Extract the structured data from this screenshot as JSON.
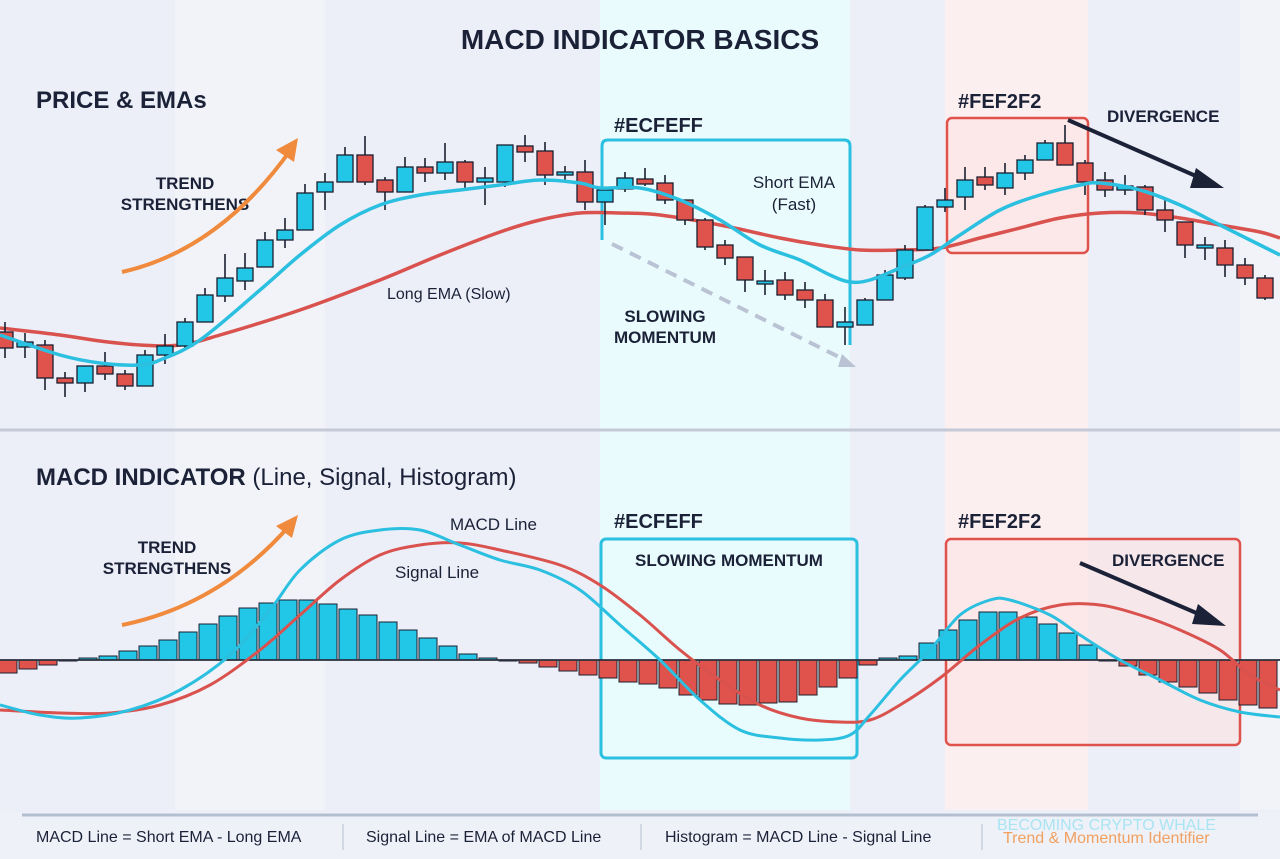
{
  "title": "MACD INDICATOR BASICS",
  "colors": {
    "bullish": "#22c6e6",
    "bearish": "#e0524c",
    "short_ema": "#2bbfe0",
    "long_ema": "#d9524e",
    "accent_orange": "#f08a3c",
    "cyan_tint": "#ECFEFF",
    "red_tint": "#FEF2F2"
  },
  "price_panel": {
    "heading": "PRICE & EMAs",
    "trend_label": [
      "TREND",
      "STRENGTHENS"
    ],
    "long_ema_label": "Long EMA (Slow)",
    "short_ema_label": [
      "Short EMA",
      "(Fast)"
    ],
    "cyan_hex_label": "#ECFEFF",
    "slowing_label": [
      "SLOWING",
      "MOMENTUM"
    ],
    "red_hex_label": "#FEF2F2",
    "divergence_label": "DIVERGENCE"
  },
  "macd_panel": {
    "heading_bold": "MACD INDICATOR",
    "heading_rest": " (Line, Signal, Histogram)",
    "trend_label": [
      "TREND",
      "STRENGTHENS"
    ],
    "macd_line_label": "MACD Line",
    "signal_line_label": "Signal Line",
    "cyan_hex_label": "#ECFEFF",
    "slowing_label": "SLOWING MOMENTUM",
    "red_hex_label": "#FEF2F2",
    "divergence_label": "DIVERGENCE"
  },
  "footer": {
    "formulas": [
      "MACD Line = Short EMA - Long EMA",
      "Signal Line = EMA of MACD Line",
      "Histogram = MACD Line - Signal Line"
    ],
    "brand": "BECOMING CRYPTO WHALE",
    "tagline": "Trend & Momentum Identifier"
  },
  "chart_data": [
    {
      "type": "candlestick",
      "title": "PRICE & EMAs",
      "candles_ohlc": [
        [
          118,
          128,
          92,
          102
        ],
        [
          103,
          117,
          92,
          108
        ],
        [
          105,
          110,
          60,
          72
        ],
        [
          72,
          78,
          53,
          67
        ],
        [
          67,
          84,
          58,
          84
        ],
        [
          84,
          98,
          70,
          76
        ],
        [
          76,
          80,
          60,
          64
        ],
        [
          64,
          100,
          64,
          95
        ],
        [
          95,
          116,
          86,
          104
        ],
        [
          104,
          132,
          100,
          128
        ],
        [
          128,
          162,
          128,
          155
        ],
        [
          154,
          196,
          148,
          172
        ],
        [
          169,
          197,
          160,
          182
        ],
        [
          183,
          218,
          183,
          210
        ],
        [
          210,
          232,
          202,
          220
        ],
        [
          220,
          266,
          220,
          257
        ],
        [
          258,
          277,
          240,
          268
        ],
        [
          268,
          303,
          268,
          295
        ],
        [
          295,
          314,
          265,
          268
        ],
        [
          270,
          273,
          240,
          258
        ],
        [
          258,
          293,
          258,
          283
        ],
        [
          283,
          292,
          268,
          277
        ],
        [
          277,
          307,
          270,
          288
        ],
        [
          288,
          290,
          262,
          268
        ],
        [
          268,
          283,
          245,
          272
        ],
        [
          268,
          305,
          263,
          305
        ],
        [
          304,
          315,
          288,
          298
        ],
        [
          299,
          308,
          265,
          275
        ],
        [
          275,
          284,
          270,
          278
        ],
        [
          278,
          290,
          240,
          248
        ],
        [
          248,
          262,
          225,
          260
        ],
        [
          261,
          278,
          258,
          272
        ],
        [
          271,
          282,
          264,
          266
        ],
        [
          267,
          275,
          246,
          250
        ],
        [
          250,
          250,
          225,
          230
        ],
        [
          230,
          232,
          200,
          203
        ],
        [
          205,
          210,
          185,
          192
        ],
        [
          193,
          193,
          158,
          170
        ],
        [
          167,
          180,
          155,
          169
        ],
        [
          170,
          178,
          150,
          155
        ],
        [
          160,
          168,
          142,
          150
        ],
        [
          150,
          156,
          123,
          123
        ],
        [
          123,
          143,
          105,
          128
        ],
        [
          125,
          152,
          125,
          150
        ],
        [
          150,
          180,
          150,
          175
        ],
        [
          172,
          205,
          170,
          200
        ],
        [
          200,
          245,
          200,
          243
        ],
        [
          243,
          262,
          238,
          250
        ],
        [
          253,
          283,
          240,
          270
        ],
        [
          273,
          283,
          260,
          265
        ],
        [
          262,
          287,
          255,
          277
        ],
        [
          277,
          295,
          270,
          290
        ],
        [
          290,
          310,
          290,
          307
        ],
        [
          307,
          325,
          285,
          285
        ],
        [
          287,
          290,
          255,
          268
        ],
        [
          270,
          278,
          253,
          260
        ],
        [
          260,
          275,
          255,
          264
        ],
        [
          263,
          265,
          235,
          240
        ],
        [
          240,
          250,
          218,
          230
        ],
        [
          228,
          228,
          192,
          205
        ],
        [
          202,
          213,
          190,
          205
        ],
        [
          202,
          210,
          173,
          185
        ],
        [
          185,
          192,
          165,
          172
        ],
        [
          172,
          175,
          150,
          152
        ]
      ],
      "short_ema": [
        [
          -0.25,
          115
        ],
        [
          2.75,
          95
        ],
        [
          4.75,
          87
        ],
        [
          6.75,
          85
        ],
        [
          7.75,
          90
        ],
        [
          9.75,
          110
        ],
        [
          12.75,
          160
        ],
        [
          14.75,
          195
        ],
        [
          16.75,
          225
        ],
        [
          18.75,
          245
        ],
        [
          20.75,
          255
        ],
        [
          22.75,
          260
        ],
        [
          24.75,
          265
        ],
        [
          26.75,
          270
        ],
        [
          28.75,
          267
        ],
        [
          29.75,
          262
        ],
        [
          31.75,
          262
        ],
        [
          33.75,
          250
        ],
        [
          35.75,
          230
        ],
        [
          37.75,
          205
        ],
        [
          39.75,
          190
        ],
        [
          41.25,
          175
        ],
        [
          42.25,
          168
        ],
        [
          43.25,
          170
        ],
        [
          44.75,
          182
        ],
        [
          46.25,
          195
        ],
        [
          47.75,
          215
        ],
        [
          49.75,
          240
        ],
        [
          51.75,
          255
        ],
        [
          53.75,
          265
        ],
        [
          54.75,
          267
        ],
        [
          56.75,
          260
        ],
        [
          58.75,
          245
        ],
        [
          60.75,
          225
        ],
        [
          62.75,
          205
        ],
        [
          63.75,
          195
        ]
      ],
      "long_ema": [
        [
          -0.25,
          122
        ],
        [
          2.75,
          115
        ],
        [
          4.75,
          109
        ],
        [
          6.75,
          105
        ],
        [
          8.75,
          105
        ],
        [
          10.75,
          115
        ],
        [
          14.75,
          140
        ],
        [
          18.75,
          170
        ],
        [
          21.75,
          195
        ],
        [
          24.75,
          218
        ],
        [
          26.75,
          230
        ],
        [
          28.75,
          237
        ],
        [
          30.75,
          237
        ],
        [
          32.75,
          235
        ],
        [
          35.75,
          225
        ],
        [
          38.75,
          212
        ],
        [
          40.75,
          205
        ],
        [
          42.75,
          200
        ],
        [
          44.75,
          200
        ],
        [
          46.75,
          202
        ],
        [
          48.75,
          212
        ],
        [
          50.75,
          222
        ],
        [
          52.75,
          232
        ],
        [
          54.75,
          237
        ],
        [
          56.75,
          237
        ],
        [
          58.75,
          232
        ],
        [
          60.75,
          225
        ],
        [
          62.75,
          218
        ],
        [
          63.75,
          212
        ]
      ],
      "highlights": [
        {
          "label": "#ECFEFF",
          "from_index": 30,
          "to_index": 42
        },
        {
          "label": "#FEF2F2",
          "from_index": 47,
          "to_index": 54
        }
      ]
    },
    {
      "type": "bar+line",
      "title": "MACD INDICATOR (Line, Signal, Histogram)",
      "histogram": [
        -1.3,
        -0.9,
        -0.5,
        -0.1,
        0.2,
        0.4,
        0.9,
        1.4,
        2.0,
        2.8,
        3.6,
        4.4,
        5.2,
        5.7,
        6.0,
        6.0,
        5.6,
        5.1,
        4.5,
        3.8,
        3.0,
        2.2,
        1.4,
        0.6,
        0.2,
        0,
        -0.3,
        -0.7,
        -1.1,
        -1.5,
        -1.8,
        -2.2,
        -2.4,
        -2.8,
        -3.5,
        -4.0,
        -4.4,
        -4.5,
        -4.3,
        -4.2,
        -3.5,
        -2.7,
        -1.8,
        -0.5,
        0.2,
        0.4,
        1.7,
        3.0,
        4.0,
        4.8,
        4.8,
        4.3,
        3.6,
        2.7,
        1.5,
        0,
        -0.6,
        -1.5,
        -2.2,
        -2.7,
        -3.3,
        -4.0,
        -4.5,
        -4.8
      ],
      "macd_line": [
        [
          -0.4,
          -4.5
        ],
        [
          1.6,
          -5.5
        ],
        [
          3.6,
          -5.8
        ],
        [
          6.1,
          -5.0
        ],
        [
          8.6,
          -3.0
        ],
        [
          11.1,
          0.5
        ],
        [
          13.1,
          5.0
        ],
        [
          14.6,
          9.0
        ],
        [
          16.6,
          12.0
        ],
        [
          18.6,
          13.0
        ],
        [
          20.6,
          13.0
        ],
        [
          22.6,
          11.5
        ],
        [
          24.6,
          10.0
        ],
        [
          26.6,
          9.0
        ],
        [
          28.6,
          7.0
        ],
        [
          30.6,
          3.5
        ],
        [
          32.6,
          0
        ],
        [
          34.6,
          -4
        ],
        [
          36.6,
          -7
        ],
        [
          38.6,
          -7.8
        ],
        [
          40.6,
          -8
        ],
        [
          42.1,
          -7.5
        ],
        [
          43.1,
          -5.5
        ],
        [
          44.6,
          -2
        ],
        [
          46.1,
          1
        ],
        [
          47.6,
          4.5
        ],
        [
          49.1,
          6
        ],
        [
          50.1,
          6
        ],
        [
          52.1,
          4.5
        ],
        [
          53.6,
          2.5
        ],
        [
          55.6,
          0
        ],
        [
          57.6,
          -2
        ],
        [
          59.6,
          -4
        ],
        [
          61.6,
          -5.2
        ],
        [
          63.6,
          -5.7
        ]
      ],
      "signal_line": [
        [
          -0.4,
          -5
        ],
        [
          2.6,
          -5.3
        ],
        [
          5.1,
          -5.3
        ],
        [
          7.6,
          -4.5
        ],
        [
          10.1,
          -2.5
        ],
        [
          12.6,
          1
        ],
        [
          14.6,
          4.5
        ],
        [
          16.6,
          8
        ],
        [
          18.6,
          10.5
        ],
        [
          20.6,
          11.5
        ],
        [
          22.6,
          11.7
        ],
        [
          24.6,
          11
        ],
        [
          27.6,
          9.5
        ],
        [
          29.6,
          7.5
        ],
        [
          31.6,
          4.5
        ],
        [
          33.6,
          1
        ],
        [
          35.6,
          -2
        ],
        [
          37.6,
          -4.5
        ],
        [
          39.6,
          -5.8
        ],
        [
          41.6,
          -6.2
        ],
        [
          43.1,
          -6
        ],
        [
          44.6,
          -4.5
        ],
        [
          46.6,
          -1.8
        ],
        [
          48.6,
          1.5
        ],
        [
          50.6,
          4.2
        ],
        [
          52.6,
          5.5
        ],
        [
          54.6,
          5.5
        ],
        [
          56.6,
          4.5
        ],
        [
          58.6,
          3
        ],
        [
          60.6,
          1
        ],
        [
          62.1,
          -1.5
        ],
        [
          63.6,
          -3
        ]
      ],
      "zero_line": 0
    }
  ]
}
